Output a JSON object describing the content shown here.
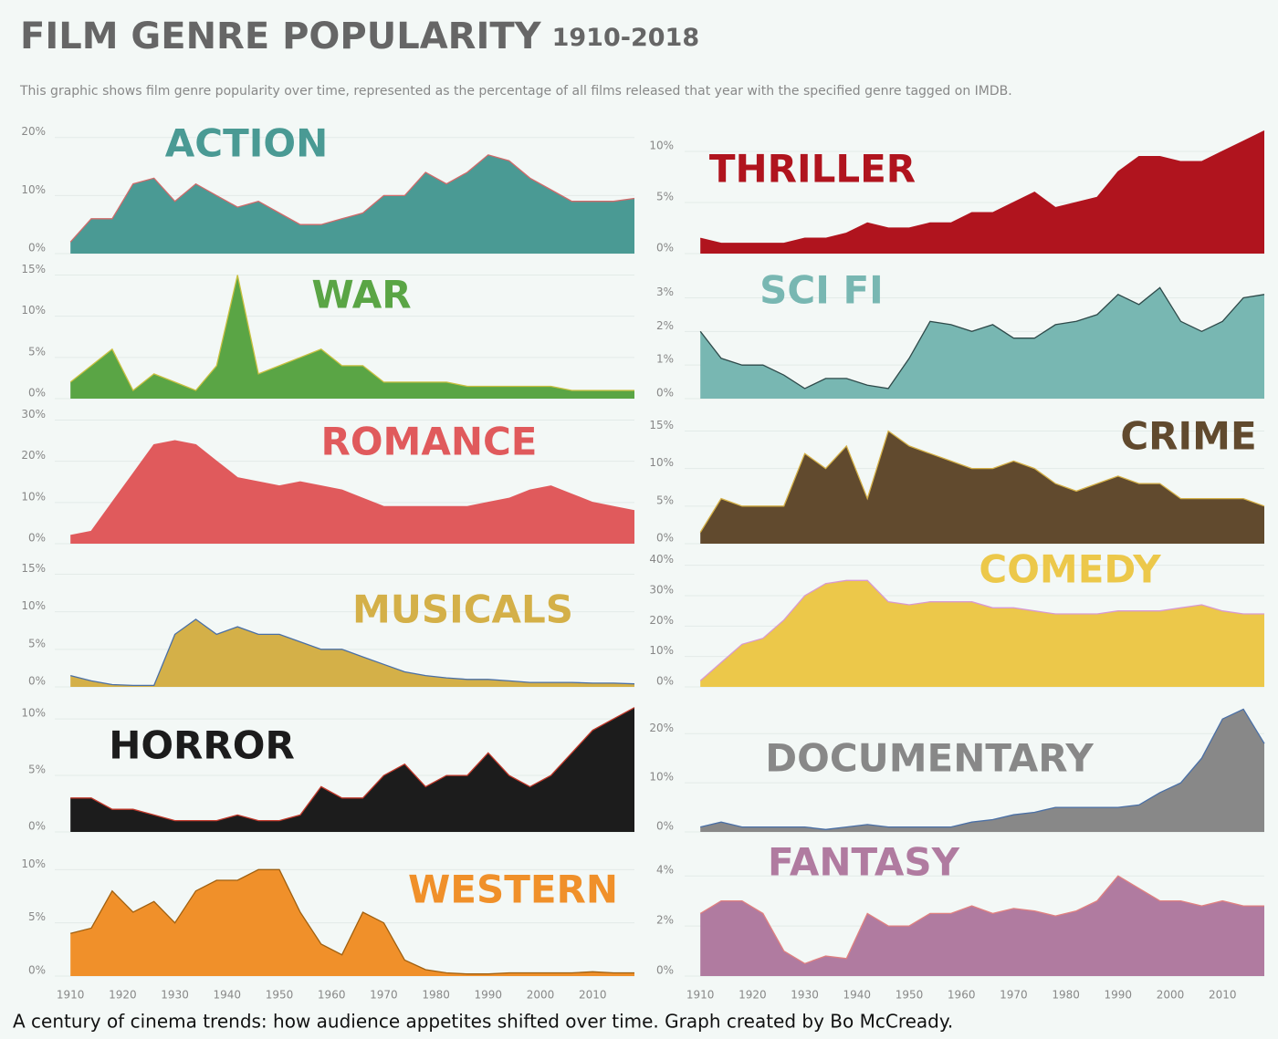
{
  "header": {
    "title": "FILM GENRE POPULARITY",
    "years": "1910-2018",
    "subtitle": "This graphic shows film genre popularity over time, represented as the percentage of all films released that year with the specified genre tagged on IMDB."
  },
  "chart_data": [
    {
      "type": "area",
      "title": "ACTION",
      "color": "#4a9a94",
      "line_color": "#d06a6a",
      "grid": true,
      "xlim": [
        1907,
        2018
      ],
      "ylim": [
        0,
        22
      ],
      "yticks": [
        {
          "value": 0,
          "label": "0%"
        },
        {
          "value": 10,
          "label": "10%"
        },
        {
          "value": 20,
          "label": "20%"
        }
      ],
      "x": [
        1910,
        1914,
        1918,
        1922,
        1926,
        1930,
        1934,
        1938,
        1942,
        1946,
        1950,
        1954,
        1958,
        1962,
        1966,
        1970,
        1974,
        1978,
        1982,
        1986,
        1990,
        1994,
        1998,
        2002,
        2006,
        2010,
        2014,
        2018
      ],
      "values": [
        2,
        6,
        6,
        12,
        13,
        9,
        12,
        10,
        8,
        9,
        7,
        5,
        5,
        6,
        7,
        10,
        10,
        14,
        12,
        14,
        17,
        16,
        13,
        11,
        9,
        9,
        9,
        9.5
      ]
    },
    {
      "type": "area",
      "title": "WAR",
      "color": "#5aa545",
      "line_color": "#c9c040",
      "grid": true,
      "xlim": [
        1907,
        2018
      ],
      "ylim": [
        0,
        15.5
      ],
      "yticks": [
        {
          "value": 0,
          "label": "0%"
        },
        {
          "value": 5,
          "label": "5%"
        },
        {
          "value": 10,
          "label": "10%"
        },
        {
          "value": 15,
          "label": "15%"
        }
      ],
      "x": [
        1910,
        1914,
        1918,
        1922,
        1926,
        1930,
        1934,
        1938,
        1942,
        1946,
        1950,
        1954,
        1958,
        1962,
        1966,
        1970,
        1974,
        1978,
        1982,
        1986,
        1990,
        1994,
        1998,
        2002,
        2006,
        2010,
        2014,
        2018
      ],
      "values": [
        2,
        4,
        6,
        1,
        3,
        2,
        1,
        4,
        15,
        3,
        4,
        5,
        6,
        4,
        4,
        2,
        2,
        2,
        2,
        1.5,
        1.5,
        1.5,
        1.5,
        1.5,
        1,
        1,
        1,
        1
      ]
    },
    {
      "type": "area",
      "title": "ROMANCE",
      "color": "#e05a5c",
      "line_color": "#e05a5c",
      "grid": true,
      "xlim": [
        1907,
        2018
      ],
      "ylim": [
        0,
        31
      ],
      "yticks": [
        {
          "value": 0,
          "label": "0%"
        },
        {
          "value": 10,
          "label": "10%"
        },
        {
          "value": 20,
          "label": "20%"
        },
        {
          "value": 30,
          "label": "30%"
        }
      ],
      "x": [
        1910,
        1914,
        1918,
        1922,
        1926,
        1930,
        1934,
        1938,
        1942,
        1946,
        1950,
        1954,
        1958,
        1962,
        1966,
        1970,
        1974,
        1978,
        1982,
        1986,
        1990,
        1994,
        1998,
        2002,
        2006,
        2010,
        2014,
        2018
      ],
      "values": [
        2,
        3,
        10,
        17,
        24,
        25,
        24,
        20,
        16,
        15,
        14,
        15,
        14,
        13,
        11,
        9,
        9,
        9,
        9,
        9,
        10,
        11,
        13,
        14,
        12,
        10,
        9,
        8
      ]
    },
    {
      "type": "area",
      "title": "MUSICALS",
      "color": "#d4b048",
      "line_color": "#4a6fa5",
      "grid": true,
      "xlim": [
        1907,
        2018
      ],
      "ylim": [
        0,
        17
      ],
      "yticks": [
        {
          "value": 0,
          "label": "0%"
        },
        {
          "value": 5,
          "label": "5%"
        },
        {
          "value": 10,
          "label": "10%"
        },
        {
          "value": 15,
          "label": "15%"
        }
      ],
      "x": [
        1910,
        1914,
        1918,
        1922,
        1926,
        1930,
        1934,
        1938,
        1942,
        1946,
        1950,
        1954,
        1958,
        1962,
        1966,
        1970,
        1974,
        1978,
        1982,
        1986,
        1990,
        1994,
        1998,
        2002,
        2006,
        2010,
        2014,
        2018
      ],
      "values": [
        1.5,
        0.8,
        0.3,
        0.2,
        0.2,
        7,
        9,
        7,
        8,
        7,
        7,
        6,
        5,
        5,
        4,
        3,
        2,
        1.5,
        1.2,
        1,
        1,
        0.8,
        0.6,
        0.6,
        0.6,
        0.5,
        0.5,
        0.4
      ]
    },
    {
      "type": "area",
      "title": "HORROR",
      "color": "#1c1c1c",
      "line_color": "#c0392b",
      "grid": true,
      "xlim": [
        1907,
        2018
      ],
      "ylim": [
        0,
        11.3
      ],
      "yticks": [
        {
          "value": 0,
          "label": "0%"
        },
        {
          "value": 5,
          "label": "5%"
        },
        {
          "value": 10,
          "label": "10%"
        }
      ],
      "x": [
        1910,
        1914,
        1918,
        1922,
        1926,
        1930,
        1934,
        1938,
        1942,
        1946,
        1950,
        1954,
        1958,
        1962,
        1966,
        1970,
        1974,
        1978,
        1982,
        1986,
        1990,
        1994,
        1998,
        2002,
        2006,
        2010,
        2014,
        2018
      ],
      "values": [
        3,
        3,
        2,
        2,
        1.5,
        1,
        1,
        1,
        1.5,
        1,
        1,
        1.5,
        4,
        3,
        3,
        5,
        6,
        4,
        5,
        5,
        7,
        5,
        4,
        5,
        7,
        9,
        10,
        11
      ]
    },
    {
      "type": "area",
      "title": "WESTERN",
      "color": "#f0902a",
      "line_color": "#a06010",
      "grid": true,
      "xlim": [
        1907,
        2018
      ],
      "ylim": [
        0,
        12
      ],
      "yticks": [
        {
          "value": 0,
          "label": "0%"
        },
        {
          "value": 5,
          "label": "5%"
        },
        {
          "value": 10,
          "label": "10%"
        }
      ],
      "xticks": [
        1910,
        1920,
        1930,
        1940,
        1950,
        1960,
        1970,
        1980,
        1990,
        2000,
        2010
      ],
      "x": [
        1910,
        1914,
        1918,
        1922,
        1926,
        1930,
        1934,
        1938,
        1942,
        1946,
        1950,
        1954,
        1958,
        1962,
        1966,
        1970,
        1974,
        1978,
        1982,
        1986,
        1990,
        1994,
        1998,
        2002,
        2006,
        2010,
        2014,
        2018
      ],
      "values": [
        4,
        4.5,
        8,
        6,
        7,
        5,
        8,
        9,
        9,
        10,
        10,
        6,
        3,
        2,
        6,
        5,
        1.5,
        0.6,
        0.3,
        0.2,
        0.2,
        0.3,
        0.3,
        0.3,
        0.3,
        0.4,
        0.3,
        0.3
      ]
    },
    {
      "type": "area",
      "title": "THRILLER",
      "color": "#b0141e",
      "line_color": "#b0141e",
      "grid": true,
      "xlim": [
        1907,
        2018
      ],
      "ylim": [
        0,
        12.5
      ],
      "yticks": [
        {
          "value": 0,
          "label": "0%"
        },
        {
          "value": 5,
          "label": "5%"
        },
        {
          "value": 10,
          "label": "10%"
        }
      ],
      "x": [
        1910,
        1914,
        1918,
        1922,
        1926,
        1930,
        1934,
        1938,
        1942,
        1946,
        1950,
        1954,
        1958,
        1962,
        1966,
        1970,
        1974,
        1978,
        1982,
        1986,
        1990,
        1994,
        1998,
        2002,
        2006,
        2010,
        2014,
        2018
      ],
      "values": [
        1.5,
        1,
        1,
        1,
        1,
        1.5,
        1.5,
        2,
        3,
        2.5,
        2.5,
        3,
        3,
        4,
        4,
        5,
        6,
        4.5,
        5,
        5.5,
        8,
        9.5,
        9.5,
        9,
        9,
        10,
        11,
        12
      ]
    },
    {
      "type": "area",
      "title": "SCI FI",
      "color": "#78b7b2",
      "line_color": "#2f4a4a",
      "grid": true,
      "xlim": [
        1907,
        2018
      ],
      "ylim": [
        0,
        3.8
      ],
      "yticks": [
        {
          "value": 0,
          "label": "0%"
        },
        {
          "value": 1,
          "label": "1%"
        },
        {
          "value": 2,
          "label": "2%"
        },
        {
          "value": 3,
          "label": "3%"
        }
      ],
      "x": [
        1910,
        1914,
        1918,
        1922,
        1926,
        1930,
        1934,
        1938,
        1942,
        1946,
        1950,
        1954,
        1958,
        1962,
        1966,
        1970,
        1974,
        1978,
        1982,
        1986,
        1990,
        1994,
        1998,
        2002,
        2006,
        2010,
        2014,
        2018
      ],
      "values": [
        2,
        1.2,
        1,
        1,
        0.7,
        0.3,
        0.6,
        0.6,
        0.4,
        0.3,
        1.2,
        2.3,
        2.2,
        2,
        2.2,
        1.8,
        1.8,
        2.2,
        2.3,
        2.5,
        3.1,
        2.8,
        3.3,
        2.3,
        2,
        2.3,
        3,
        3.1
      ]
    },
    {
      "type": "area",
      "title": "CRIME",
      "color": "#614a2e",
      "line_color": "#d4b048",
      "grid": true,
      "xlim": [
        1907,
        2018
      ],
      "ylim": [
        0,
        17
      ],
      "yticks": [
        {
          "value": 0,
          "label": "0%"
        },
        {
          "value": 5,
          "label": "5%"
        },
        {
          "value": 10,
          "label": "10%"
        },
        {
          "value": 15,
          "label": "15%"
        }
      ],
      "x": [
        1910,
        1914,
        1918,
        1922,
        1926,
        1930,
        1934,
        1938,
        1942,
        1946,
        1950,
        1954,
        1958,
        1962,
        1966,
        1970,
        1974,
        1978,
        1982,
        1986,
        1990,
        1994,
        1998,
        2002,
        2006,
        2010,
        2014,
        2018
      ],
      "values": [
        1.5,
        6,
        5,
        5,
        5,
        12,
        10,
        13,
        6,
        15,
        13,
        12,
        11,
        10,
        10,
        11,
        10,
        8,
        7,
        8,
        9,
        8,
        8,
        6,
        6,
        6,
        6,
        5
      ]
    },
    {
      "type": "area",
      "title": "COMEDY",
      "color": "#ecc84a",
      "line_color": "#d89ad0",
      "grid": true,
      "xlim": [
        1907,
        2018
      ],
      "ylim": [
        0,
        42
      ],
      "yticks": [
        {
          "value": 0,
          "label": "0%"
        },
        {
          "value": 10,
          "label": "10%"
        },
        {
          "value": 20,
          "label": "20%"
        },
        {
          "value": 30,
          "label": "30%"
        },
        {
          "value": 40,
          "label": "40%"
        }
      ],
      "x": [
        1910,
        1914,
        1918,
        1922,
        1926,
        1930,
        1934,
        1938,
        1942,
        1946,
        1950,
        1954,
        1958,
        1962,
        1966,
        1970,
        1974,
        1978,
        1982,
        1986,
        1990,
        1994,
        1998,
        2002,
        2006,
        2010,
        2014,
        2018
      ],
      "values": [
        2,
        8,
        14,
        16,
        22,
        30,
        34,
        35,
        35,
        28,
        27,
        28,
        28,
        28,
        26,
        26,
        25,
        24,
        24,
        24,
        25,
        25,
        25,
        26,
        27,
        25,
        24,
        24
      ]
    },
    {
      "type": "area",
      "title": "DOCUMENTARY",
      "color": "#888888",
      "line_color": "#4a6fa5",
      "grid": true,
      "xlim": [
        1907,
        2018
      ],
      "ylim": [
        0,
        26
      ],
      "yticks": [
        {
          "value": 0,
          "label": "0%"
        },
        {
          "value": 10,
          "label": "10%"
        },
        {
          "value": 20,
          "label": "20%"
        }
      ],
      "x": [
        1910,
        1914,
        1918,
        1922,
        1926,
        1930,
        1934,
        1938,
        1942,
        1946,
        1950,
        1954,
        1958,
        1962,
        1966,
        1970,
        1974,
        1978,
        1982,
        1986,
        1990,
        1994,
        1998,
        2002,
        2006,
        2010,
        2014,
        2018
      ],
      "values": [
        1,
        2,
        1,
        1,
        1,
        1,
        0.5,
        1,
        1.5,
        1,
        1,
        1,
        1,
        2,
        2.5,
        3.5,
        4,
        5,
        5,
        5,
        5,
        5.5,
        8,
        10,
        15,
        23,
        25,
        18
      ]
    },
    {
      "type": "area",
      "title": "FANTASY",
      "color": "#b07ba0",
      "line_color": "#e08080",
      "grid": true,
      "xlim": [
        1907,
        2018
      ],
      "ylim": [
        0,
        5.1
      ],
      "yticks": [
        {
          "value": 0,
          "label": "0%"
        },
        {
          "value": 2,
          "label": "2%"
        },
        {
          "value": 4,
          "label": "4%"
        }
      ],
      "xticks": [
        1910,
        1920,
        1930,
        1940,
        1950,
        1960,
        1970,
        1980,
        1990,
        2000,
        2010
      ],
      "x": [
        1910,
        1914,
        1918,
        1922,
        1926,
        1930,
        1934,
        1938,
        1942,
        1946,
        1950,
        1954,
        1958,
        1962,
        1966,
        1970,
        1974,
        1978,
        1982,
        1986,
        1990,
        1994,
        1998,
        2002,
        2006,
        2010,
        2014,
        2018
      ],
      "values": [
        2.5,
        3,
        3,
        2.5,
        1,
        0.5,
        0.8,
        0.7,
        2.5,
        2,
        2,
        2.5,
        2.5,
        2.8,
        2.5,
        2.7,
        2.6,
        2.4,
        2.6,
        3,
        4,
        3.5,
        3,
        3,
        2.8,
        3,
        2.8,
        2.8
      ]
    }
  ],
  "footer": "A century of cinema trends: how audience appetites shifted over time. Graph created by Bo McCready."
}
